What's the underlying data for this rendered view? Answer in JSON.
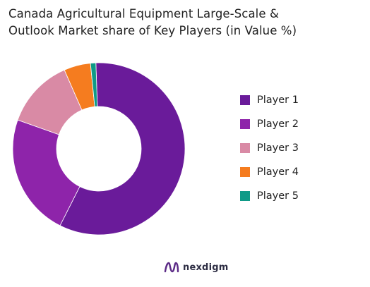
{
  "title_lines": [
    "Canada Agricultural Equipment Large-Scale &",
    "Outlook Market share of Key Players (in Value %)"
  ],
  "chart_data": {
    "type": "pie",
    "variant": "donut",
    "title": "Canada Agricultural Equipment Large-Scale & Outlook Market share of Key Players (in Value %)",
    "legend_position": "right",
    "categories": [
      "Player 1",
      "Player 2",
      "Player 3",
      "Player 4",
      "Player 5"
    ],
    "values": [
      58,
      23,
      13,
      5,
      1
    ],
    "colors": [
      "#6a1b9a",
      "#8e24aa",
      "#d98aa5",
      "#f57c1f",
      "#0f9a87"
    ]
  },
  "legend": [
    {
      "label": "Player 1",
      "color": "#6a1b9a"
    },
    {
      "label": "Player 2",
      "color": "#8e24aa"
    },
    {
      "label": "Player 3",
      "color": "#d98aa5"
    },
    {
      "label": "Player 4",
      "color": "#f57c1f"
    },
    {
      "label": "Player 5",
      "color": "#0f9a87"
    }
  ],
  "brand": {
    "name": "nexdigm",
    "icon": "nexdigm-logo-icon"
  }
}
